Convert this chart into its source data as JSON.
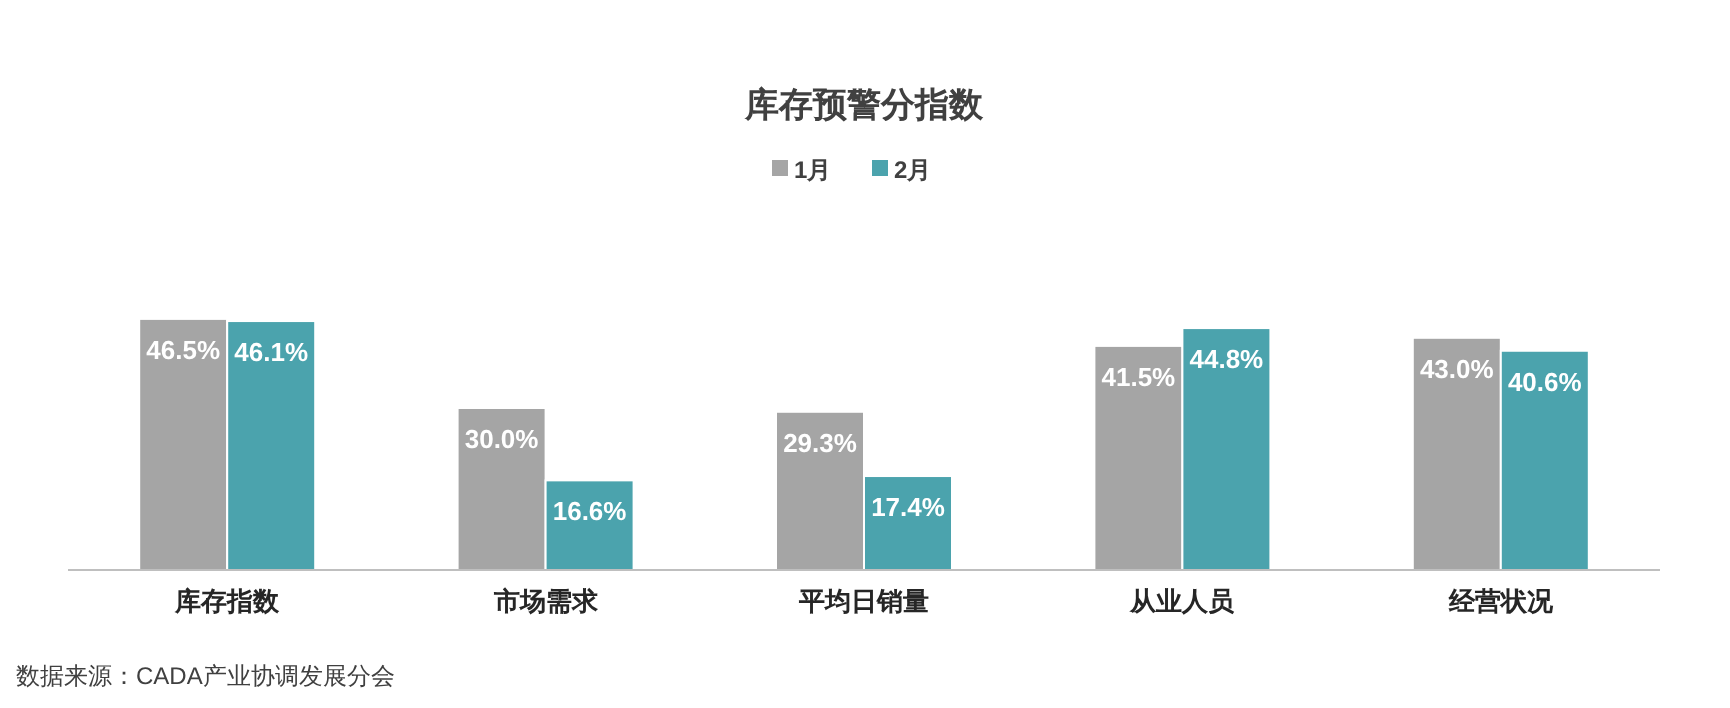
{
  "chart_data": {
    "type": "bar",
    "title": "库存预警分指数",
    "categories": [
      "库存指数",
      "市场需求",
      "平均日销量",
      "从业人员",
      "经营状况"
    ],
    "series": [
      {
        "name": "1月",
        "color": "#a5a5a5",
        "values": [
          46.5,
          30.0,
          29.3,
          41.5,
          43.0
        ],
        "value_labels": [
          "46.5%",
          "30.0%",
          "29.3%",
          "41.5%",
          "43.0%"
        ]
      },
      {
        "name": "2月",
        "color": "#4ba3ad",
        "values": [
          46.1,
          16.6,
          17.4,
          44.8,
          40.6
        ],
        "value_labels": [
          "46.1%",
          "16.6%",
          "17.4%",
          "44.8%",
          "40.6%"
        ]
      }
    ],
    "legend": "top",
    "annotations": [
      "数据来源：CADA产业协调发展分会"
    ]
  }
}
